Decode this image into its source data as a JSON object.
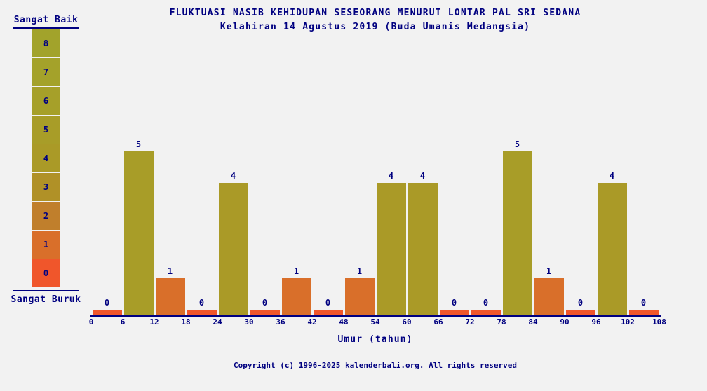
{
  "page": {
    "background_color": "#f2f2f2",
    "text_color": "#000080"
  },
  "title": "FLUKTUASI NASIB KEHIDUPAN SESEORANG MENURUT LONTAR PAL SRI SEDANA",
  "subtitle": "Kelahiran 14 Agustus 2019 (Buda Umanis Medangsia)",
  "legend": {
    "top_label": "Sangat Baik",
    "bottom_label": "Sangat Buruk",
    "scale": [
      {
        "value": 8,
        "color": "#a2a32b"
      },
      {
        "value": 7,
        "color": "#a4a22a"
      },
      {
        "value": 6,
        "color": "#a6a029"
      },
      {
        "value": 5,
        "color": "#a89d28"
      },
      {
        "value": 4,
        "color": "#aa9a27"
      },
      {
        "value": 3,
        "color": "#b09127"
      },
      {
        "value": 2,
        "color": "#c07f2c"
      },
      {
        "value": 1,
        "color": "#d96f2a"
      },
      {
        "value": 0,
        "color": "#f0562b"
      }
    ]
  },
  "chart_data": {
    "type": "bar",
    "title": "FLUKTUASI NASIB KEHIDUPAN SESEORANG MENURUT LONTAR PAL SRI SEDANA",
    "subtitle": "Kelahiran 14 Agustus 2019 (Buda Umanis Medangsia)",
    "xlabel": "Umur (tahun)",
    "ylabel": "",
    "x_tick_labels": [
      0,
      6,
      12,
      18,
      24,
      30,
      36,
      42,
      48,
      54,
      60,
      66,
      72,
      78,
      84,
      90,
      96,
      102,
      108
    ],
    "age_intervals": "18 bars, each spanning 6 years of age from 0 to 108",
    "values": [
      0,
      5,
      1,
      0,
      4,
      0,
      1,
      0,
      1,
      4,
      4,
      0,
      0,
      5,
      1,
      0,
      4,
      0
    ],
    "ylim": [
      0,
      8
    ],
    "grid": false,
    "legend_position": "left",
    "color_scale_semantics": "values colored from olive-green (good, 8) to red-orange (bad, 0) using legend.scale"
  },
  "footer": {
    "copyright": "Copyright (c) 1996-2025 kalenderbali.org. All rights reserved"
  }
}
